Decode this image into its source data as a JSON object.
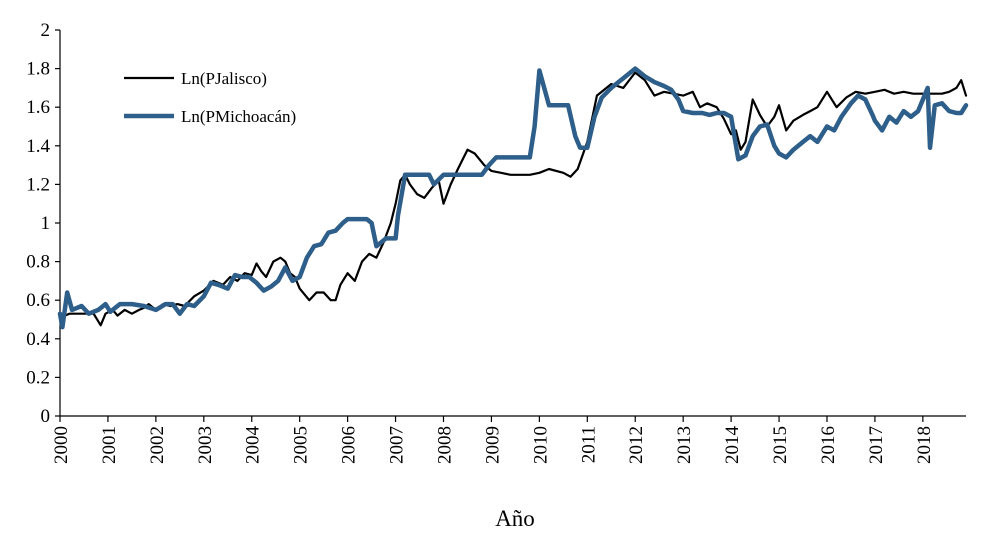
{
  "chart_data": {
    "type": "line",
    "xlabel": "Año",
    "ylabel": "",
    "xlim": [
      2000,
      2018.9
    ],
    "ylim": [
      0,
      2
    ],
    "x_ticks": [
      "2000",
      "2001",
      "2002",
      "2003",
      "2004",
      "2005",
      "2006",
      "2007",
      "2008",
      "2009",
      "2010",
      "2011",
      "2012",
      "2013",
      "2014",
      "2015",
      "2016",
      "2017",
      "2018"
    ],
    "y_ticks": [
      "0",
      "0.2",
      "0.4",
      "0.6",
      "0.8",
      "1",
      "1.2",
      "1.4",
      "1.6",
      "1.8",
      "2"
    ],
    "grid": false,
    "legend_position": "top-left",
    "series": [
      {
        "name": "Ln(PJalisco)",
        "color": "#000000",
        "x": [
          2000.0,
          2000.1,
          2000.2,
          2000.3,
          2000.5,
          2000.7,
          2000.85,
          2000.95,
          2001.1,
          2001.2,
          2001.35,
          2001.5,
          2001.65,
          2001.75,
          2001.85,
          2002.0,
          2002.15,
          2002.3,
          2002.45,
          2002.6,
          2002.8,
          2003.0,
          2003.2,
          2003.4,
          2003.55,
          2003.7,
          2003.85,
          2004.0,
          2004.1,
          2004.2,
          2004.3,
          2004.45,
          2004.6,
          2004.7,
          2004.8,
          2004.9,
          2005.0,
          2005.2,
          2005.35,
          2005.5,
          2005.65,
          2005.75,
          2005.85,
          2006.0,
          2006.15,
          2006.3,
          2006.45,
          2006.6,
          2006.75,
          2006.9,
          2007.0,
          2007.1,
          2007.2,
          2007.3,
          2007.45,
          2007.6,
          2007.75,
          2007.9,
          2008.0,
          2008.15,
          2008.3,
          2008.5,
          2008.65,
          2008.85,
          2009.0,
          2009.2,
          2009.4,
          2009.6,
          2009.8,
          2010.0,
          2010.2,
          2010.5,
          2010.65,
          2010.8,
          2011.0,
          2011.2,
          2011.5,
          2011.75,
          2012.0,
          2012.2,
          2012.4,
          2012.6,
          2012.8,
          2013.0,
          2013.2,
          2013.35,
          2013.5,
          2013.7,
          2013.85,
          2014.0,
          2014.1,
          2014.2,
          2014.3,
          2014.45,
          2014.6,
          2014.75,
          2014.9,
          2015.0,
          2015.15,
          2015.3,
          2015.5,
          2015.65,
          2015.8,
          2016.0,
          2016.2,
          2016.4,
          2016.6,
          2016.8,
          2017.0,
          2017.2,
          2017.4,
          2017.6,
          2017.8,
          2018.0,
          2018.2,
          2018.4,
          2018.55,
          2018.7,
          2018.8,
          2018.9
        ],
        "y": [
          0.53,
          0.52,
          0.53,
          0.53,
          0.53,
          0.53,
          0.47,
          0.53,
          0.55,
          0.52,
          0.55,
          0.53,
          0.55,
          0.56,
          0.58,
          0.55,
          0.58,
          0.57,
          0.58,
          0.57,
          0.62,
          0.65,
          0.7,
          0.68,
          0.72,
          0.7,
          0.74,
          0.73,
          0.79,
          0.75,
          0.72,
          0.8,
          0.82,
          0.8,
          0.74,
          0.72,
          0.66,
          0.6,
          0.64,
          0.64,
          0.6,
          0.6,
          0.68,
          0.74,
          0.7,
          0.8,
          0.84,
          0.82,
          0.9,
          1.0,
          1.1,
          1.22,
          1.25,
          1.2,
          1.15,
          1.13,
          1.18,
          1.22,
          1.1,
          1.2,
          1.28,
          1.38,
          1.36,
          1.3,
          1.27,
          1.26,
          1.25,
          1.25,
          1.25,
          1.26,
          1.28,
          1.26,
          1.24,
          1.28,
          1.42,
          1.66,
          1.72,
          1.7,
          1.78,
          1.74,
          1.66,
          1.68,
          1.67,
          1.66,
          1.68,
          1.6,
          1.62,
          1.6,
          1.54,
          1.46,
          1.48,
          1.38,
          1.42,
          1.64,
          1.56,
          1.5,
          1.55,
          1.61,
          1.48,
          1.53,
          1.56,
          1.58,
          1.6,
          1.68,
          1.6,
          1.65,
          1.68,
          1.67,
          1.68,
          1.69,
          1.67,
          1.68,
          1.67,
          1.67,
          1.67,
          1.67,
          1.68,
          1.7,
          1.74,
          1.66
        ]
      },
      {
        "name": "Ln(PMichoacán)",
        "color": "#2e5f8a",
        "x": [
          2000.0,
          2000.05,
          2000.15,
          2000.25,
          2000.45,
          2000.6,
          2000.8,
          2000.95,
          2001.05,
          2001.25,
          2001.5,
          2001.75,
          2002.0,
          2002.2,
          2002.35,
          2002.5,
          2002.65,
          2002.8,
          2003.0,
          2003.15,
          2003.3,
          2003.5,
          2003.65,
          2003.8,
          2003.95,
          2004.1,
          2004.25,
          2004.4,
          2004.55,
          2004.7,
          2004.85,
          2005.0,
          2005.15,
          2005.3,
          2005.45,
          2005.6,
          2005.75,
          2005.9,
          2006.0,
          2006.2,
          2006.4,
          2006.5,
          2006.6,
          2006.8,
          2007.0,
          2007.05,
          2007.2,
          2007.5,
          2007.7,
          2007.8,
          2008.0,
          2008.3,
          2008.6,
          2008.8,
          2008.95,
          2009.1,
          2009.3,
          2009.5,
          2009.65,
          2009.8,
          2009.9,
          2010.0,
          2010.1,
          2010.2,
          2010.4,
          2010.6,
          2010.75,
          2010.85,
          2011.0,
          2011.15,
          2011.3,
          2011.5,
          2011.75,
          2012.0,
          2012.2,
          2012.4,
          2012.6,
          2012.75,
          2012.9,
          2013.0,
          2013.2,
          2013.4,
          2013.55,
          2013.7,
          2013.85,
          2014.0,
          2014.15,
          2014.3,
          2014.45,
          2014.6,
          2014.75,
          2014.9,
          2015.0,
          2015.15,
          2015.3,
          2015.5,
          2015.65,
          2015.8,
          2016.0,
          2016.15,
          2016.3,
          2016.5,
          2016.65,
          2016.8,
          2016.95,
          2017.0,
          2017.15,
          2017.3,
          2017.45,
          2017.6,
          2017.75,
          2017.9,
          2018.0,
          2018.1,
          2018.15,
          2018.25,
          2018.4,
          2018.55,
          2018.7,
          2018.8,
          2018.9
        ],
        "y": [
          0.53,
          0.46,
          0.64,
          0.55,
          0.57,
          0.53,
          0.55,
          0.58,
          0.54,
          0.58,
          0.58,
          0.57,
          0.55,
          0.58,
          0.58,
          0.53,
          0.58,
          0.57,
          0.62,
          0.69,
          0.68,
          0.66,
          0.73,
          0.72,
          0.72,
          0.69,
          0.65,
          0.67,
          0.7,
          0.77,
          0.7,
          0.72,
          0.82,
          0.88,
          0.89,
          0.95,
          0.96,
          1.0,
          1.02,
          1.02,
          1.02,
          1.0,
          0.88,
          0.92,
          0.92,
          1.04,
          1.25,
          1.25,
          1.25,
          1.2,
          1.25,
          1.25,
          1.25,
          1.25,
          1.3,
          1.34,
          1.34,
          1.34,
          1.34,
          1.34,
          1.5,
          1.79,
          1.7,
          1.61,
          1.61,
          1.61,
          1.45,
          1.39,
          1.39,
          1.55,
          1.65,
          1.7,
          1.75,
          1.8,
          1.76,
          1.73,
          1.71,
          1.69,
          1.64,
          1.58,
          1.57,
          1.57,
          1.56,
          1.57,
          1.57,
          1.55,
          1.33,
          1.35,
          1.45,
          1.5,
          1.51,
          1.4,
          1.36,
          1.34,
          1.38,
          1.42,
          1.45,
          1.42,
          1.5,
          1.48,
          1.55,
          1.62,
          1.66,
          1.64,
          1.56,
          1.53,
          1.48,
          1.55,
          1.52,
          1.58,
          1.55,
          1.58,
          1.64,
          1.7,
          1.39,
          1.61,
          1.62,
          1.58,
          1.57,
          1.57,
          1.61
        ]
      }
    ]
  }
}
